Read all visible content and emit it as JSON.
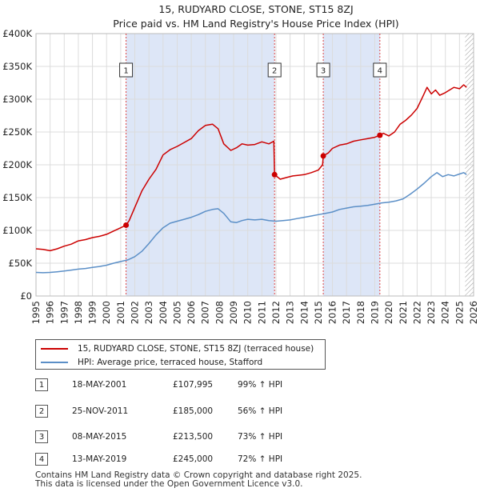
{
  "chart_data": {
    "type": "line",
    "title": "15, RUDYARD CLOSE, STONE, ST15 8ZJ",
    "subtitle": "Price paid vs. HM Land Registry's House Price Index (HPI)",
    "xlabel": "",
    "ylabel": "",
    "xlim": [
      1995,
      2026
    ],
    "ylim": [
      0,
      400000
    ],
    "x_ticks": [
      1995,
      1996,
      1997,
      1998,
      1999,
      2000,
      2001,
      2002,
      2003,
      2004,
      2005,
      2006,
      2007,
      2008,
      2009,
      2010,
      2011,
      2012,
      2013,
      2014,
      2015,
      2016,
      2017,
      2018,
      2019,
      2020,
      2021,
      2022,
      2023,
      2024,
      2025,
      2026
    ],
    "y_ticks": [
      {
        "value": 0,
        "label": "£0"
      },
      {
        "value": 50000,
        "label": "£50K"
      },
      {
        "value": 100000,
        "label": "£100K"
      },
      {
        "value": 150000,
        "label": "£150K"
      },
      {
        "value": 200000,
        "label": "£200K"
      },
      {
        "value": 250000,
        "label": "£250K"
      },
      {
        "value": 300000,
        "label": "£300K"
      },
      {
        "value": 350000,
        "label": "£350K"
      },
      {
        "value": 400000,
        "label": "£400K"
      }
    ],
    "grid": true,
    "colors": {
      "property": "#cc0000",
      "hpi": "#5b8fc7",
      "shade": "#dde6f7",
      "vline": "#dd4444",
      "hatch": "#999999"
    },
    "shaded_ranges": [
      [
        2001.38,
        2011.9
      ],
      [
        2015.35,
        2019.36
      ]
    ],
    "future_hatch_from": 2025.4,
    "series": [
      {
        "name": "15, RUDYARD CLOSE, STONE, ST15 8ZJ (terraced house)",
        "x": [
          1995.0,
          1995.5,
          1996.0,
          1996.5,
          1997.0,
          1997.5,
          1998.0,
          1998.5,
          1999.0,
          1999.5,
          2000.0,
          2000.5,
          2001.0,
          2001.38,
          2001.6,
          2002.0,
          2002.5,
          2003.0,
          2003.5,
          2004.0,
          2004.5,
          2005.0,
          2005.5,
          2006.0,
          2006.5,
          2007.0,
          2007.5,
          2007.9,
          2008.3,
          2008.8,
          2009.2,
          2009.6,
          2010.0,
          2010.5,
          2011.0,
          2011.5,
          2011.85,
          2011.9,
          2012.3,
          2012.8,
          2013.2,
          2013.6,
          2014.0,
          2014.5,
          2015.0,
          2015.3,
          2015.35,
          2015.7,
          2016.0,
          2016.5,
          2017.0,
          2017.5,
          2018.0,
          2018.5,
          2019.0,
          2019.36,
          2019.6,
          2020.0,
          2020.4,
          2020.8,
          2021.2,
          2021.6,
          2022.0,
          2022.4,
          2022.7,
          2023.0,
          2023.3,
          2023.6,
          2024.0,
          2024.3,
          2024.6,
          2025.0,
          2025.3,
          2025.5
        ],
        "values": [
          72000,
          71000,
          69000,
          72000,
          76000,
          79000,
          84000,
          86000,
          89000,
          91000,
          94000,
          99000,
          104000,
          107995,
          115000,
          135000,
          160000,
          178000,
          193000,
          215000,
          223000,
          228000,
          234000,
          240000,
          252000,
          260000,
          262000,
          255000,
          232000,
          222000,
          226000,
          232000,
          230000,
          231000,
          235000,
          232000,
          236000,
          185000,
          178000,
          181000,
          183000,
          184000,
          185000,
          188000,
          192000,
          200000,
          213500,
          218000,
          225000,
          230000,
          232000,
          236000,
          238000,
          240000,
          242000,
          245000,
          248000,
          244000,
          250000,
          262000,
          268000,
          276000,
          286000,
          304000,
          318000,
          308000,
          314000,
          306000,
          310000,
          314000,
          318000,
          316000,
          322000,
          318000
        ]
      },
      {
        "name": "HPI: Average price, terraced house, Stafford",
        "x": [
          1995.0,
          1995.5,
          1996.0,
          1996.5,
          1997.0,
          1997.5,
          1998.0,
          1998.5,
          1999.0,
          1999.5,
          2000.0,
          2000.5,
          2001.0,
          2001.5,
          2002.0,
          2002.5,
          2003.0,
          2003.5,
          2004.0,
          2004.5,
          2005.0,
          2005.5,
          2006.0,
          2006.5,
          2007.0,
          2007.5,
          2007.9,
          2008.3,
          2008.8,
          2009.2,
          2009.6,
          2010.0,
          2010.5,
          2011.0,
          2011.5,
          2012.0,
          2012.5,
          2013.0,
          2013.5,
          2014.0,
          2014.5,
          2015.0,
          2015.5,
          2016.0,
          2016.5,
          2017.0,
          2017.5,
          2018.0,
          2018.5,
          2019.0,
          2019.5,
          2020.0,
          2020.5,
          2021.0,
          2021.5,
          2022.0,
          2022.5,
          2023.0,
          2023.4,
          2023.8,
          2024.2,
          2024.6,
          2025.0,
          2025.3,
          2025.5
        ],
        "values": [
          36000,
          35500,
          36000,
          37000,
          38000,
          39500,
          41000,
          42000,
          43500,
          45000,
          47000,
          50000,
          52500,
          55000,
          60000,
          68000,
          80000,
          93000,
          104000,
          111000,
          114000,
          117000,
          120000,
          124000,
          129000,
          132000,
          133000,
          126000,
          113000,
          112000,
          115000,
          117000,
          116000,
          117000,
          115000,
          114000,
          115000,
          116000,
          118000,
          120000,
          122000,
          124000,
          126000,
          128000,
          132000,
          134000,
          136000,
          137000,
          138000,
          140000,
          142000,
          143000,
          145000,
          148000,
          155000,
          163000,
          172000,
          182000,
          188000,
          182000,
          185000,
          183000,
          186000,
          188000,
          185000
        ]
      }
    ],
    "sale_markers": [
      {
        "label": "1",
        "x": 2001.38,
        "value": 107995
      },
      {
        "label": "2",
        "x": 2011.9,
        "value": 185000
      },
      {
        "label": "3",
        "x": 2015.35,
        "value": 213500
      },
      {
        "label": "4",
        "x": 2019.36,
        "value": 245000
      }
    ]
  },
  "legend": {
    "property_label": "15, RUDYARD CLOSE, STONE, ST15 8ZJ (terraced house)",
    "hpi_label": "HPI: Average price, terraced house, Stafford"
  },
  "sales": [
    {
      "num": "1",
      "date": "18-MAY-2001",
      "price": "£107,995",
      "hpi": "99% ↑ HPI"
    },
    {
      "num": "2",
      "date": "25-NOV-2011",
      "price": "£185,000",
      "hpi": "56% ↑ HPI"
    },
    {
      "num": "3",
      "date": "08-MAY-2015",
      "price": "£213,500",
      "hpi": "73% ↑ HPI"
    },
    {
      "num": "4",
      "date": "13-MAY-2019",
      "price": "£245,000",
      "hpi": "72% ↑ HPI"
    }
  ],
  "footer": {
    "line1": "Contains HM Land Registry data © Crown copyright and database right 2025.",
    "line2": "This data is licensed under the Open Government Licence v3.0."
  }
}
